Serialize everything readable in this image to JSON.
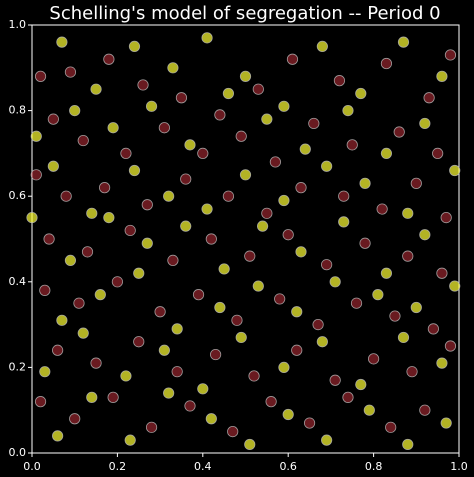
{
  "chart_data": {
    "type": "scatter",
    "title": "Schelling's model of segregation -- Period 0",
    "xlim": [
      0,
      1
    ],
    "ylim": [
      0,
      1
    ],
    "xticks": [
      {
        "value": 0,
        "label": "0.0"
      },
      0.2,
      0.4,
      0.6,
      0.8,
      {
        "value": 1,
        "label": "1.0"
      }
    ],
    "yticks": [
      {
        "value": 0,
        "label": "0.0"
      },
      0.2,
      0.4,
      0.6,
      0.8,
      {
        "value": 1,
        "label": "1.0"
      }
    ],
    "series": [
      {
        "color": "#c0303a",
        "x": [
          0.02,
          0.09,
          0.18,
          0.26,
          0.35,
          0.44,
          0.53,
          0.61,
          0.72,
          0.83,
          0.93,
          0.98,
          0.05,
          0.12,
          0.22,
          0.31,
          0.4,
          0.49,
          0.57,
          0.66,
          0.75,
          0.86,
          0.95,
          0.01,
          0.08,
          0.17,
          0.27,
          0.36,
          0.46,
          0.55,
          0.63,
          0.73,
          0.82,
          0.9,
          0.97,
          0.04,
          0.13,
          0.23,
          0.33,
          0.42,
          0.51,
          0.6,
          0.69,
          0.78,
          0.88,
          0.96,
          0.03,
          0.11,
          0.2,
          0.3,
          0.39,
          0.48,
          0.58,
          0.67,
          0.76,
          0.85,
          0.94,
          0.06,
          0.15,
          0.25,
          0.34,
          0.43,
          0.52,
          0.62,
          0.71,
          0.8,
          0.89,
          0.98,
          0.02,
          0.1,
          0.19,
          0.28,
          0.37,
          0.47,
          0.56,
          0.65,
          0.74,
          0.84,
          0.92
        ],
        "values": [
          0.88,
          0.89,
          0.92,
          0.86,
          0.83,
          0.79,
          0.85,
          0.92,
          0.87,
          0.91,
          0.83,
          0.93,
          0.78,
          0.73,
          0.7,
          0.76,
          0.7,
          0.74,
          0.68,
          0.77,
          0.72,
          0.75,
          0.7,
          0.65,
          0.6,
          0.62,
          0.58,
          0.64,
          0.6,
          0.56,
          0.62,
          0.6,
          0.57,
          0.63,
          0.55,
          0.5,
          0.47,
          0.52,
          0.45,
          0.5,
          0.46,
          0.51,
          0.44,
          0.49,
          0.46,
          0.42,
          0.38,
          0.35,
          0.4,
          0.33,
          0.37,
          0.31,
          0.36,
          0.3,
          0.35,
          0.32,
          0.29,
          0.24,
          0.21,
          0.26,
          0.19,
          0.23,
          0.18,
          0.24,
          0.17,
          0.22,
          0.19,
          0.25,
          0.12,
          0.08,
          0.13,
          0.06,
          0.11,
          0.05,
          0.12,
          0.07,
          0.13,
          0.06,
          0.1
        ]
      },
      {
        "color": "#ffff33",
        "x": [
          0.07,
          0.15,
          0.24,
          0.33,
          0.41,
          0.5,
          0.59,
          0.68,
          0.77,
          0.87,
          0.96,
          0.01,
          0.1,
          0.19,
          0.28,
          0.37,
          0.46,
          0.55,
          0.64,
          0.74,
          0.83,
          0.92,
          0.05,
          0.14,
          0.24,
          0.32,
          0.41,
          0.5,
          0.59,
          0.69,
          0.78,
          0.88,
          0.99,
          0.0,
          0.09,
          0.18,
          0.27,
          0.36,
          0.45,
          0.54,
          0.63,
          0.73,
          0.83,
          0.92,
          0.07,
          0.16,
          0.25,
          0.34,
          0.44,
          0.53,
          0.62,
          0.71,
          0.81,
          0.9,
          0.99,
          0.03,
          0.12,
          0.22,
          0.31,
          0.4,
          0.49,
          0.59,
          0.68,
          0.77,
          0.87,
          0.96,
          0.06,
          0.14,
          0.23,
          0.32,
          0.42,
          0.51,
          0.6,
          0.69,
          0.79,
          0.88,
          0.97
        ],
        "values": [
          0.96,
          0.85,
          0.95,
          0.9,
          0.97,
          0.88,
          0.81,
          0.95,
          0.84,
          0.96,
          0.88,
          0.74,
          0.8,
          0.76,
          0.81,
          0.72,
          0.84,
          0.78,
          0.71,
          0.8,
          0.7,
          0.77,
          0.67,
          0.56,
          0.66,
          0.6,
          0.57,
          0.65,
          0.59,
          0.67,
          0.63,
          0.56,
          0.66,
          0.55,
          0.45,
          0.55,
          0.49,
          0.53,
          0.43,
          0.53,
          0.47,
          0.54,
          0.42,
          0.51,
          0.31,
          0.37,
          0.42,
          0.29,
          0.34,
          0.39,
          0.33,
          0.4,
          0.37,
          0.34,
          0.39,
          0.19,
          0.28,
          0.18,
          0.24,
          0.15,
          0.27,
          0.2,
          0.26,
          0.16,
          0.27,
          0.21,
          0.04,
          0.13,
          0.03,
          0.14,
          0.08,
          0.02,
          0.09,
          0.03,
          0.1,
          0.02,
          0.07
        ]
      }
    ]
  }
}
